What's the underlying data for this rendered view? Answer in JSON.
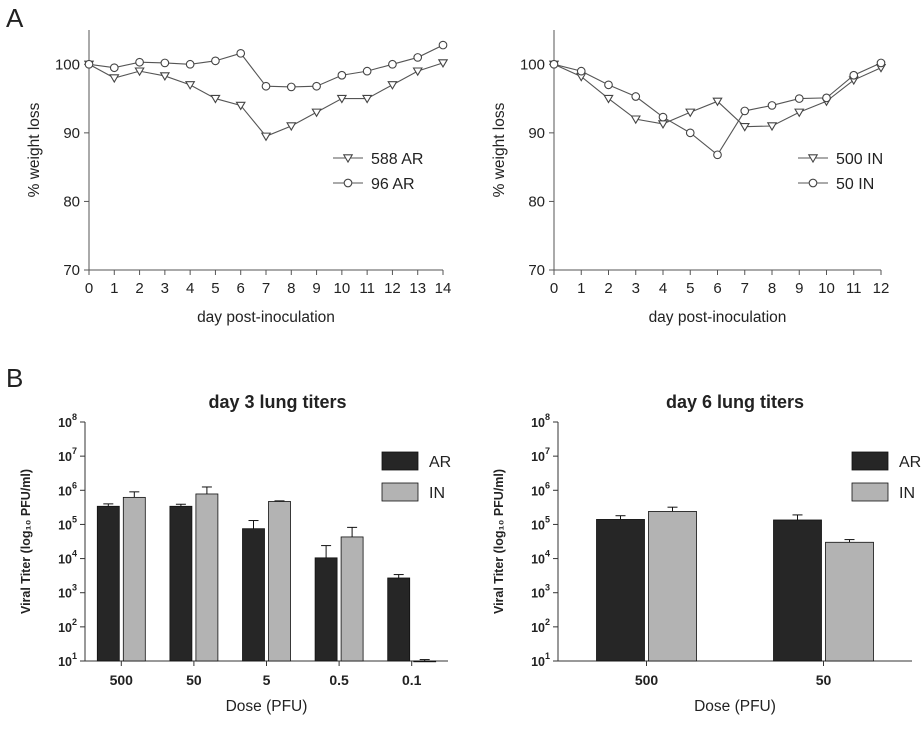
{
  "panel_letters": {
    "a": "A",
    "b": "B"
  },
  "chart_data": [
    {
      "type": "line",
      "panel": "A",
      "xlabel": "day post-inoculation",
      "ylabel": "% weight loss",
      "xlim": [
        0,
        14
      ],
      "ylim": [
        70,
        105
      ],
      "yticks": [
        70,
        80,
        90,
        100
      ],
      "x": [
        0,
        1,
        2,
        3,
        4,
        5,
        6,
        7,
        8,
        9,
        10,
        11,
        12,
        13,
        14
      ],
      "legend_position": "center-right",
      "series": [
        {
          "name": "588 AR",
          "marker": "triangle-down",
          "values": [
            100,
            98,
            99,
            98.3,
            97,
            95,
            94,
            89.5,
            91,
            93,
            95,
            95,
            97,
            99,
            100.2
          ]
        },
        {
          "name": "96 AR",
          "marker": "circle",
          "values": [
            100,
            99.5,
            100.3,
            100.2,
            100,
            100.5,
            101.6,
            96.8,
            96.7,
            96.8,
            98.4,
            99,
            100,
            101,
            102.8
          ]
        }
      ],
      "grid": false
    },
    {
      "type": "line",
      "panel": "A",
      "xlabel": "day post-inoculation",
      "ylabel": "% weight loss",
      "xlim": [
        0,
        12
      ],
      "ylim": [
        70,
        105
      ],
      "yticks": [
        70,
        80,
        90,
        100
      ],
      "x": [
        0,
        1,
        2,
        3,
        4,
        5,
        6,
        7,
        8,
        9,
        10,
        11,
        12
      ],
      "legend_position": "center-right",
      "series": [
        {
          "name": "500 IN",
          "marker": "triangle-down",
          "values": [
            100,
            98.2,
            95,
            92,
            91.3,
            93,
            94.6,
            90.9,
            91,
            93,
            94.6,
            97.7,
            99.5
          ]
        },
        {
          "name": "50 IN",
          "marker": "circle",
          "values": [
            100,
            99,
            97,
            95.3,
            92.3,
            90,
            86.8,
            93.2,
            94,
            95,
            95.1,
            98.4,
            100.2
          ]
        }
      ],
      "grid": false
    },
    {
      "type": "bar",
      "panel": "B",
      "title": "day 3 lung titers",
      "xlabel": "Dose  (PFU)",
      "ylabel": "Viral Titer (log₁₀ PFU/ml)",
      "y_scale": "log",
      "ylim": [
        10,
        100000000
      ],
      "ytick_exponents": [
        1,
        2,
        3,
        4,
        5,
        6,
        7,
        8
      ],
      "categories": [
        "500",
        "50",
        "5",
        "0.5",
        "0.1"
      ],
      "legend_position": "top-right",
      "series": [
        {
          "name": "AR",
          "color": "#262626",
          "values": [
            340000,
            340000,
            75000,
            10500,
            2700
          ],
          "error_upper": [
            400000,
            390000,
            130000,
            24000,
            3400
          ]
        },
        {
          "name": "IN",
          "color": "#b3b3b3",
          "values": [
            620000,
            780000,
            470000,
            43000,
            10
          ],
          "error_upper": [
            900000,
            1250000,
            490000,
            82000,
            11
          ]
        }
      ]
    },
    {
      "type": "bar",
      "panel": "B",
      "title": "day 6 lung titers",
      "xlabel": "Dose  (PFU)",
      "ylabel": "Viral Titer (log₁₀ PFU/ml)",
      "y_scale": "log",
      "ylim": [
        10,
        100000000
      ],
      "ytick_exponents": [
        1,
        2,
        3,
        4,
        5,
        6,
        7,
        8
      ],
      "categories": [
        "500",
        "50"
      ],
      "legend_position": "top-right",
      "series": [
        {
          "name": "AR",
          "color": "#262626",
          "values": [
            140000,
            135000
          ],
          "error_upper": [
            180000,
            190000
          ]
        },
        {
          "name": "IN",
          "color": "#b3b3b3",
          "values": [
            240000,
            30000
          ],
          "error_upper": [
            320000,
            36000
          ]
        }
      ]
    }
  ]
}
